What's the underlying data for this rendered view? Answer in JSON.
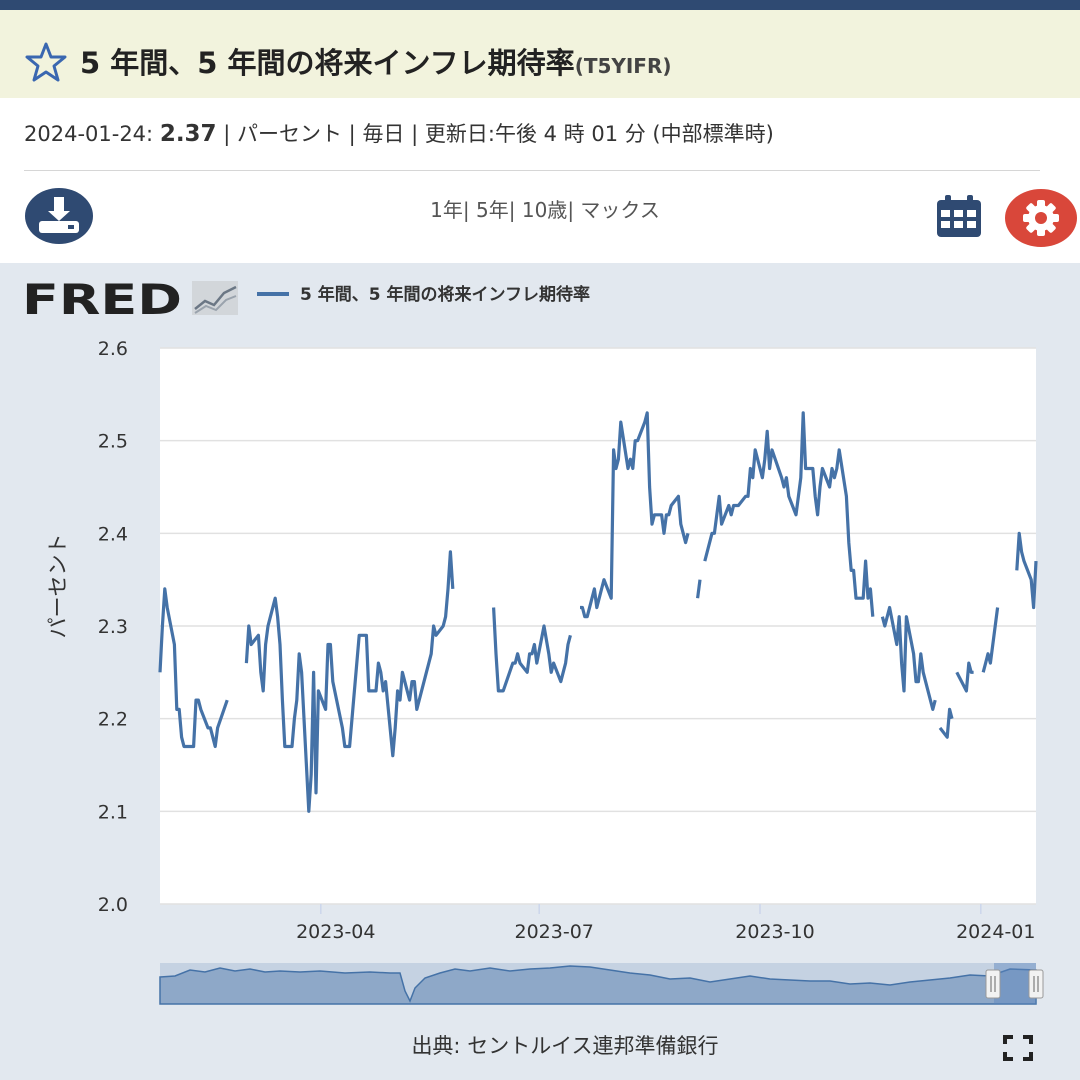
{
  "header": {
    "title": "5 年間、5 年間の将来インフレ期待率",
    "series_code": "(T5YIFR)"
  },
  "meta": {
    "date": "2024-01-24:",
    "value": "2.37",
    "unit": "パーセント",
    "frequency": "毎日",
    "updated": "更新日:午後 4 時 01 分 (中部標準時)",
    "separator": " | "
  },
  "toolbar": {
    "ranges": [
      "1年",
      "5年",
      "10歳",
      "マックス"
    ],
    "range_separator": "| "
  },
  "brand": {
    "logo_text": "FRED"
  },
  "legend": {
    "label": "5 年間、5 年間の将来インフレ期待率",
    "color": "#4572a7"
  },
  "source": {
    "text": "出典: セントルイス連邦準備銀行"
  },
  "colors": {
    "header_bg": "#f2f3dd",
    "topbar": "#2f4a72",
    "line": "#4572a7",
    "chart_bg": "#e2e8ef",
    "plot_bg": "#ffffff",
    "download_btn": "#2f4a72",
    "gear_btn": "#d9473a"
  },
  "chart_data": {
    "type": "line",
    "ylabel": "パーセント",
    "ylim": [
      2.0,
      2.6
    ],
    "yticks": [
      2.0,
      2.1,
      2.2,
      2.3,
      2.4,
      2.5,
      2.6
    ],
    "ytick_labels": [
      "2.0",
      "2.1",
      "2.2",
      "2.3",
      "2.4",
      "2.5",
      "2.6"
    ],
    "xlim": [
      "2023-01-24",
      "2024-01-24"
    ],
    "xticks": [
      "2023-04-01",
      "2023-07-01",
      "2023-10-01",
      "2024-01-01"
    ],
    "xtick_labels": [
      "2023-04",
      "2023-07",
      "2023-10",
      "2024-01"
    ],
    "grid": true,
    "legend_position": "top-left",
    "series": [
      {
        "name": "5 年間、5 年間の将来インフレ期待率",
        "segments": [
          {
            "x": [
              "2023-01-24",
              "2023-01-25",
              "2023-01-26",
              "2023-01-27",
              "2023-01-30",
              "2023-01-31",
              "2023-02-01",
              "2023-02-02",
              "2023-02-03",
              "2023-02-06",
              "2023-02-07",
              "2023-02-08",
              "2023-02-09",
              "2023-02-10",
              "2023-02-13",
              "2023-02-14",
              "2023-02-15",
              "2023-02-16",
              "2023-02-17",
              "2023-02-21",
              "2023-02-22",
              "2023-02-23",
              "2023-02-24"
            ],
            "y": [
              2.25,
              2.3,
              2.34,
              2.32,
              2.28,
              2.21,
              2.21,
              2.18,
              2.17,
              2.17,
              2.17,
              2.22,
              2.22,
              2.21,
              2.19,
              2.19,
              2.18,
              2.17,
              2.19,
              2.22,
              null,
              null,
              null
            ]
          },
          {
            "x": [
              "2023-03-01",
              "2023-03-02",
              "2023-03-03",
              "2023-03-06",
              "2023-03-07",
              "2023-03-08",
              "2023-03-09",
              "2023-03-10",
              "2023-03-13",
              "2023-03-14",
              "2023-03-15",
              "2023-03-16",
              "2023-03-17",
              "2023-03-20",
              "2023-03-21",
              "2023-03-22",
              "2023-03-23",
              "2023-03-24",
              "2023-03-27",
              "2023-03-28",
              "2023-03-29",
              "2023-03-30",
              "2023-03-31",
              "2023-04-03",
              "2023-04-04",
              "2023-04-05",
              "2023-04-06",
              "2023-04-10",
              "2023-04-11",
              "2023-04-12",
              "2023-04-13",
              "2023-04-14",
              "2023-04-17",
              "2023-04-18",
              "2023-04-19",
              "2023-04-20",
              "2023-04-21",
              "2023-04-24",
              "2023-04-25",
              "2023-04-26",
              "2023-04-27",
              "2023-04-28",
              "2023-05-01",
              "2023-05-02",
              "2023-05-03",
              "2023-05-04",
              "2023-05-05",
              "2023-05-08",
              "2023-05-09",
              "2023-05-10",
              "2023-05-11",
              "2023-05-12",
              "2023-05-15",
              "2023-05-16",
              "2023-05-17",
              "2023-05-18",
              "2023-05-19",
              "2023-05-22",
              "2023-05-23",
              "2023-05-24",
              "2023-05-25",
              "2023-05-26",
              "2023-05-30",
              "2023-05-31",
              "2023-06-01",
              "2023-06-02",
              "2023-06-05",
              "2023-06-06",
              "2023-06-07"
            ],
            "y": [
              2.26,
              2.3,
              2.28,
              2.29,
              2.25,
              2.23,
              2.28,
              2.3,
              2.33,
              2.31,
              2.28,
              2.22,
              2.17,
              2.17,
              2.2,
              2.22,
              2.27,
              2.25,
              2.1,
              2.14,
              2.25,
              2.12,
              2.23,
              2.21,
              2.28,
              2.28,
              2.24,
              2.19,
              2.17,
              2.17,
              2.17,
              2.2,
              2.29,
              2.29,
              2.29,
              2.29,
              2.23,
              2.23,
              2.26,
              2.25,
              2.23,
              2.24,
              2.16,
              2.19,
              2.23,
              2.22,
              2.25,
              2.22,
              2.24,
              2.24,
              2.21,
              2.22,
              2.25,
              2.26,
              2.27,
              2.3,
              2.29,
              2.3,
              2.31,
              2.34,
              2.38,
              2.34,
              null,
              null,
              null,
              null,
              null,
              null,
              null
            ]
          },
          {
            "x": [
              "2023-06-12",
              "2023-06-13",
              "2023-06-14",
              "2023-06-15",
              "2023-06-16",
              "2023-06-20",
              "2023-06-21",
              "2023-06-22",
              "2023-06-23",
              "2023-06-26",
              "2023-06-27",
              "2023-06-28",
              "2023-06-29",
              "2023-06-30",
              "2023-07-03",
              "2023-07-05",
              "2023-07-06",
              "2023-07-07",
              "2023-07-10",
              "2023-07-11",
              "2023-07-12",
              "2023-07-13",
              "2023-07-14",
              "2023-07-17",
              "2023-07-18",
              "2023-07-19",
              "2023-07-20",
              "2023-07-21",
              "2023-07-24",
              "2023-07-25",
              "2023-07-26",
              "2023-07-27",
              "2023-07-28",
              "2023-07-31",
              "2023-08-01",
              "2023-08-02",
              "2023-08-03",
              "2023-08-04",
              "2023-08-07",
              "2023-08-08",
              "2023-08-09",
              "2023-08-10",
              "2023-08-11",
              "2023-08-14",
              "2023-08-15",
              "2023-08-16",
              "2023-08-17",
              "2023-08-18",
              "2023-08-21",
              "2023-08-22",
              "2023-08-23",
              "2023-08-24",
              "2023-08-25",
              "2023-08-28",
              "2023-08-29",
              "2023-08-30",
              "2023-08-31",
              "2023-09-01"
            ],
            "y": [
              2.32,
              2.27,
              2.23,
              2.23,
              2.23,
              2.26,
              2.26,
              2.27,
              2.26,
              2.25,
              2.27,
              2.27,
              2.28,
              2.26,
              2.3,
              2.27,
              2.25,
              2.26,
              2.24,
              2.25,
              2.26,
              2.28,
              2.29,
              null,
              2.32,
              2.32,
              2.31,
              2.31,
              2.34,
              2.32,
              2.33,
              2.34,
              2.35,
              2.33,
              2.49,
              2.47,
              2.48,
              2.52,
              2.47,
              2.48,
              2.47,
              2.5,
              2.5,
              2.52,
              2.53,
              2.45,
              2.41,
              2.42,
              2.42,
              2.4,
              2.42,
              2.42,
              2.43,
              2.44,
              2.41,
              2.4,
              2.39,
              2.4
            ]
          },
          {
            "x": [
              "2023-09-05",
              "2023-09-06",
              "2023-09-07",
              "2023-09-08",
              "2023-09-11",
              "2023-09-12",
              "2023-09-13",
              "2023-09-14",
              "2023-09-15",
              "2023-09-18",
              "2023-09-19",
              "2023-09-20",
              "2023-09-21",
              "2023-09-22",
              "2023-09-25",
              "2023-09-26",
              "2023-09-27",
              "2023-09-28",
              "2023-09-29",
              "2023-10-02",
              "2023-10-03",
              "2023-10-04",
              "2023-10-05",
              "2023-10-06",
              "2023-10-10",
              "2023-10-11",
              "2023-10-12",
              "2023-10-13",
              "2023-10-16",
              "2023-10-17",
              "2023-10-18",
              "2023-10-19",
              "2023-10-20",
              "2023-10-23",
              "2023-10-24",
              "2023-10-25",
              "2023-10-26",
              "2023-10-27",
              "2023-10-30",
              "2023-10-31",
              "2023-11-01",
              "2023-11-02",
              "2023-11-03",
              "2023-11-06",
              "2023-11-07",
              "2023-11-08",
              "2023-11-09",
              "2023-11-10",
              "2023-11-13",
              "2023-11-14",
              "2023-11-15",
              "2023-11-16",
              "2023-11-17",
              "2023-11-20",
              "2023-11-21",
              "2023-11-22",
              "2023-11-24",
              "2023-11-27",
              "2023-11-28",
              "2023-11-29",
              "2023-11-30",
              "2023-12-01",
              "2023-12-04",
              "2023-12-05",
              "2023-12-06",
              "2023-12-07",
              "2023-12-08",
              "2023-12-11",
              "2023-12-12",
              "2023-12-13",
              "2023-12-14",
              "2023-12-15",
              "2023-12-18",
              "2023-12-19",
              "2023-12-20",
              "2023-12-21",
              "2023-12-22",
              "2023-12-26",
              "2023-12-27",
              "2023-12-28",
              "2023-12-29"
            ],
            "y": [
              2.33,
              2.35,
              null,
              2.37,
              2.4,
              2.4,
              2.42,
              2.44,
              2.41,
              2.43,
              2.42,
              2.43,
              2.43,
              2.43,
              2.44,
              2.44,
              2.47,
              2.46,
              2.49,
              2.46,
              2.48,
              2.51,
              2.47,
              2.49,
              2.46,
              2.45,
              2.46,
              2.44,
              2.42,
              2.44,
              2.46,
              2.53,
              2.47,
              2.47,
              2.44,
              2.42,
              2.45,
              2.47,
              2.45,
              2.47,
              2.46,
              2.47,
              2.49,
              2.44,
              2.39,
              2.36,
              2.36,
              2.33,
              2.33,
              2.37,
              2.33,
              2.34,
              2.31,
              null,
              2.31,
              2.3,
              2.32,
              2.28,
              2.31,
              2.26,
              2.23,
              2.31,
              2.27,
              2.24,
              2.24,
              2.27,
              2.25,
              2.22,
              2.21,
              2.22,
              null,
              2.19,
              2.18,
              2.21,
              2.2,
              null,
              2.25,
              2.23,
              2.26,
              2.25,
              2.25
            ]
          },
          {
            "x": [
              "2024-01-02",
              "2024-01-03",
              "2024-01-04",
              "2024-01-05",
              "2024-01-08",
              "2024-01-09",
              "2024-01-10",
              "2024-01-11",
              "2024-01-12",
              "2024-01-16",
              "2024-01-17",
              "2024-01-18",
              "2024-01-19",
              "2024-01-22",
              "2024-01-23",
              "2024-01-24"
            ],
            "y": [
              2.25,
              2.26,
              2.27,
              2.26,
              2.32,
              null,
              null,
              null,
              null,
              2.36,
              2.4,
              2.38,
              2.37,
              2.35,
              2.32,
              2.37
            ]
          }
        ]
      }
    ]
  }
}
